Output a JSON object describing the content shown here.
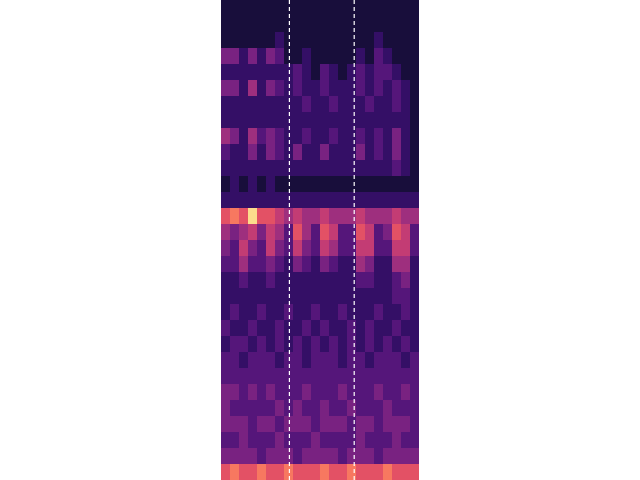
{
  "chart_data": {
    "type": "heatmap",
    "tick_labels": false,
    "xlim": [
      0,
      22
    ],
    "ylim": [
      0,
      30
    ],
    "color_range": [
      0,
      9
    ],
    "vlines": [
      7.6,
      14.8
    ],
    "cells": [
      [
        1,
        1,
        1,
        1,
        1,
        1,
        1,
        1,
        1,
        1,
        1,
        1,
        1,
        1,
        1,
        1,
        1,
        1,
        1,
        1,
        1,
        1
      ],
      [
        1,
        1,
        1,
        1,
        1,
        1,
        1,
        1,
        1,
        1,
        1,
        1,
        1,
        1,
        1,
        1,
        1,
        1,
        1,
        1,
        1,
        1
      ],
      [
        1,
        1,
        1,
        1,
        1,
        1,
        2,
        1,
        1,
        1,
        1,
        1,
        1,
        1,
        1,
        1,
        1,
        2,
        1,
        1,
        1,
        1
      ],
      [
        4,
        4,
        2,
        4,
        2,
        4,
        3,
        1,
        1,
        2,
        1,
        1,
        1,
        1,
        1,
        2,
        1,
        3,
        2,
        1,
        1,
        1
      ],
      [
        2,
        2,
        2,
        2,
        2,
        2,
        2,
        2,
        3,
        2,
        1,
        3,
        2,
        1,
        2,
        3,
        2,
        3,
        3,
        2,
        1,
        1
      ],
      [
        4,
        4,
        2,
        5,
        2,
        4,
        3,
        2,
        3,
        2,
        2,
        3,
        2,
        2,
        2,
        3,
        2,
        3,
        2,
        3,
        2,
        1
      ],
      [
        2,
        2,
        2,
        2,
        2,
        2,
        2,
        2,
        2,
        3,
        2,
        2,
        3,
        2,
        2,
        2,
        3,
        2,
        2,
        3,
        2,
        1
      ],
      [
        2,
        2,
        2,
        2,
        2,
        2,
        2,
        2,
        2,
        2,
        2,
        2,
        2,
        2,
        2,
        2,
        2,
        2,
        2,
        2,
        2,
        1
      ],
      [
        5,
        4,
        2,
        5,
        3,
        4,
        3,
        2,
        2,
        3,
        2,
        2,
        3,
        2,
        2,
        3,
        2,
        3,
        2,
        4,
        2,
        1
      ],
      [
        3,
        2,
        2,
        4,
        2,
        4,
        3,
        2,
        4,
        2,
        2,
        4,
        2,
        2,
        2,
        4,
        2,
        3,
        2,
        4,
        2,
        1
      ],
      [
        2,
        2,
        2,
        2,
        2,
        2,
        2,
        2,
        2,
        2,
        2,
        2,
        2,
        2,
        2,
        2,
        2,
        2,
        2,
        3,
        2,
        1
      ],
      [
        1,
        2,
        1,
        2,
        1,
        2,
        1,
        1,
        1,
        1,
        1,
        1,
        1,
        1,
        1,
        1,
        1,
        1,
        1,
        1,
        1,
        1
      ],
      [
        2,
        2,
        2,
        2,
        2,
        2,
        2,
        2,
        2,
        2,
        2,
        2,
        2,
        2,
        2,
        2,
        2,
        2,
        2,
        2,
        2,
        2
      ],
      [
        7,
        8,
        7,
        9,
        7,
        7,
        6,
        5,
        6,
        5,
        5,
        6,
        5,
        5,
        5,
        6,
        5,
        5,
        5,
        6,
        5,
        5
      ],
      [
        5,
        4,
        5,
        6,
        4,
        6,
        5,
        3,
        7,
        5,
        3,
        7,
        6,
        3,
        3,
        7,
        6,
        3,
        4,
        7,
        6,
        3
      ],
      [
        4,
        3,
        6,
        4,
        3,
        6,
        4,
        3,
        6,
        4,
        3,
        6,
        5,
        3,
        3,
        6,
        6,
        3,
        3,
        6,
        6,
        3
      ],
      [
        3,
        3,
        5,
        3,
        3,
        4,
        3,
        2,
        4,
        3,
        2,
        4,
        3,
        2,
        2,
        5,
        4,
        2,
        2,
        5,
        5,
        2
      ],
      [
        2,
        2,
        3,
        2,
        2,
        3,
        2,
        2,
        2,
        2,
        2,
        2,
        2,
        2,
        2,
        3,
        3,
        2,
        2,
        3,
        4,
        2
      ],
      [
        2,
        2,
        2,
        2,
        2,
        2,
        2,
        2,
        2,
        2,
        2,
        2,
        2,
        2,
        2,
        2,
        2,
        2,
        2,
        3,
        3,
        2
      ],
      [
        2,
        3,
        2,
        2,
        3,
        2,
        2,
        3,
        2,
        2,
        3,
        2,
        2,
        3,
        2,
        2,
        2,
        3,
        2,
        2,
        3,
        2
      ],
      [
        3,
        2,
        2,
        3,
        2,
        2,
        3,
        2,
        2,
        3,
        2,
        3,
        2,
        2,
        3,
        2,
        3,
        2,
        2,
        3,
        2,
        2
      ],
      [
        2,
        3,
        3,
        2,
        3,
        2,
        3,
        2,
        3,
        2,
        3,
        2,
        3,
        2,
        3,
        2,
        3,
        2,
        3,
        2,
        3,
        2
      ],
      [
        3,
        3,
        2,
        3,
        3,
        3,
        2,
        3,
        3,
        2,
        3,
        3,
        3,
        2,
        3,
        3,
        2,
        3,
        3,
        3,
        2,
        3
      ],
      [
        3,
        3,
        3,
        3,
        3,
        3,
        3,
        3,
        3,
        3,
        3,
        3,
        3,
        3,
        3,
        3,
        3,
        3,
        3,
        3,
        3,
        3
      ],
      [
        4,
        4,
        3,
        4,
        3,
        4,
        3,
        3,
        3,
        4,
        3,
        3,
        3,
        4,
        3,
        3,
        3,
        4,
        3,
        3,
        4,
        3
      ],
      [
        4,
        3,
        3,
        3,
        3,
        3,
        4,
        3,
        4,
        3,
        3,
        4,
        3,
        3,
        4,
        3,
        3,
        3,
        4,
        3,
        3,
        3
      ],
      [
        4,
        4,
        4,
        3,
        4,
        4,
        3,
        4,
        4,
        4,
        3,
        4,
        4,
        4,
        3,
        4,
        4,
        3,
        4,
        4,
        4,
        3
      ],
      [
        3,
        3,
        4,
        3,
        3,
        3,
        4,
        3,
        3,
        3,
        4,
        3,
        3,
        3,
        3,
        4,
        3,
        3,
        3,
        4,
        3,
        3
      ],
      [
        4,
        4,
        4,
        4,
        3,
        4,
        4,
        4,
        3,
        4,
        4,
        4,
        4,
        3,
        4,
        4,
        4,
        3,
        4,
        4,
        4,
        4
      ],
      [
        7,
        8,
        7,
        7,
        8,
        7,
        7,
        8,
        7,
        7,
        7,
        8,
        7,
        7,
        8,
        7,
        7,
        7,
        8,
        7,
        7,
        7
      ]
    ]
  }
}
